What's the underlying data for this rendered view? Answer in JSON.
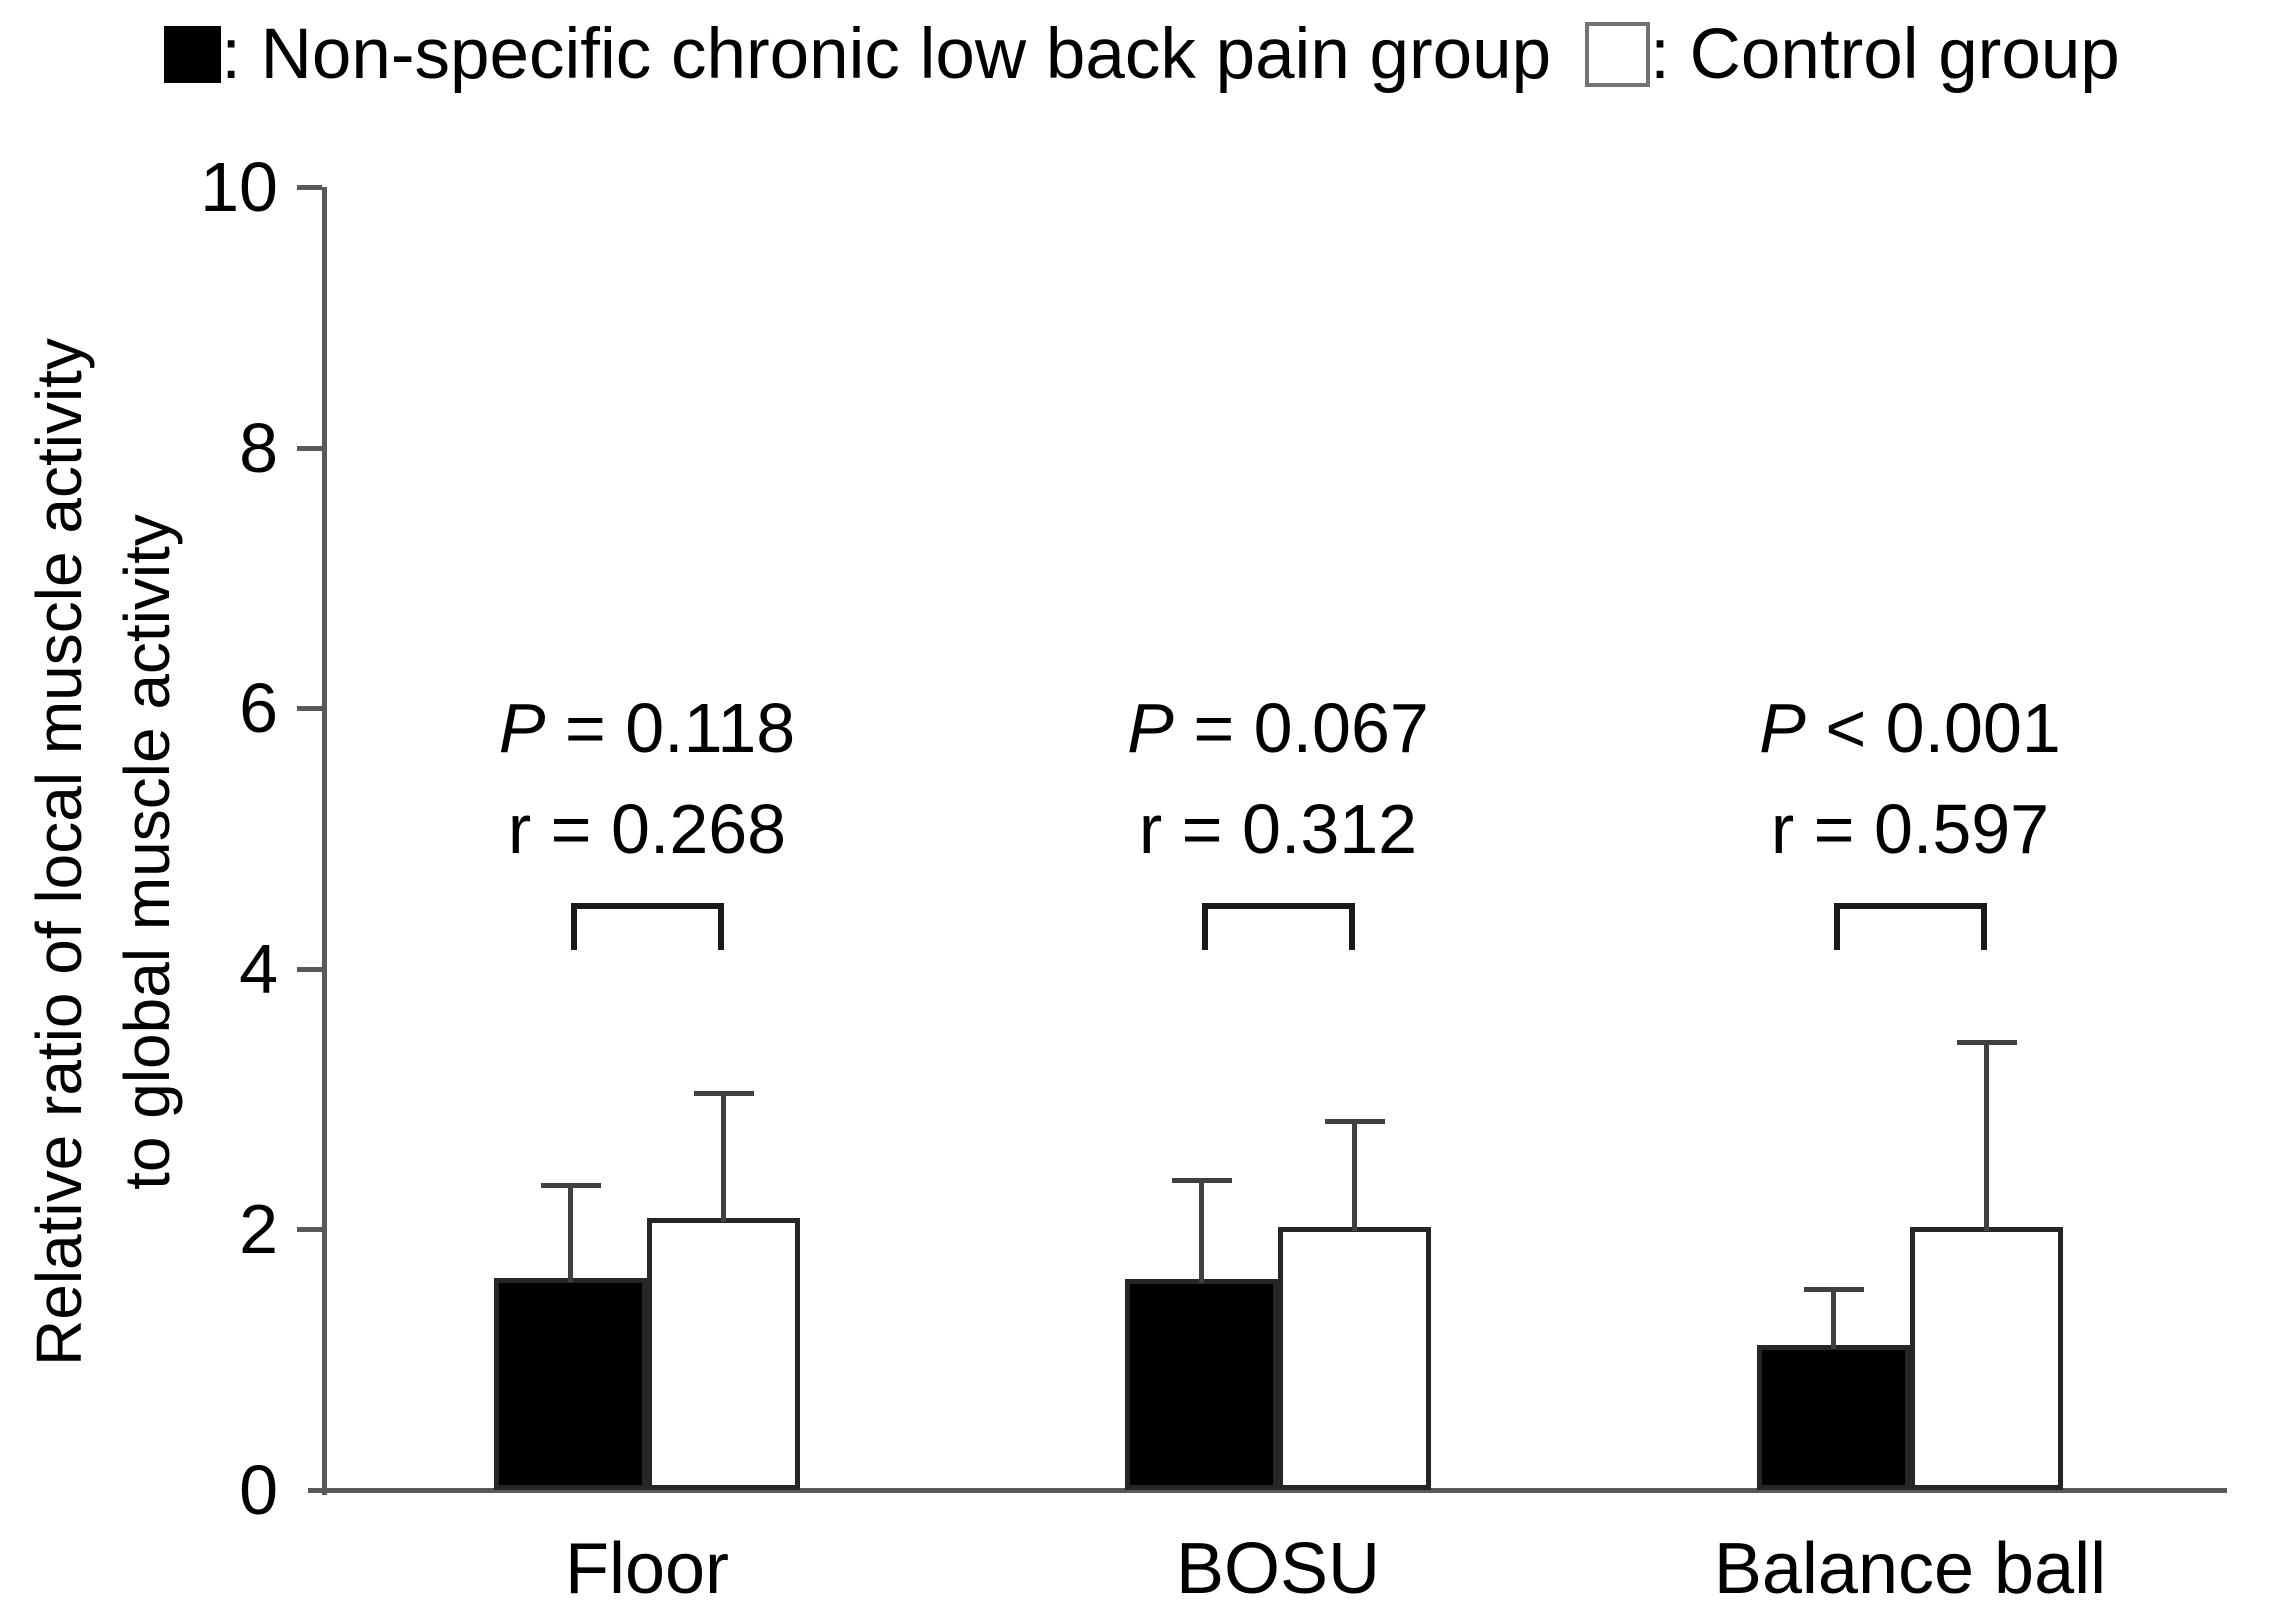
{
  "legend": {
    "nsclbp_label": ": Non-specific chronic low back pain group",
    "control_label": ": Control group"
  },
  "chart_data": {
    "type": "bar",
    "title": "",
    "categories": [
      "Floor",
      "BOSU",
      "Balance ball"
    ],
    "series": [
      {
        "name": "Non-specific chronic low back pain group",
        "fill": "#000000",
        "values": [
          1.63,
          1.62,
          1.11
        ],
        "errors_up": [
          0.71,
          0.76,
          0.43
        ]
      },
      {
        "name": "Control group",
        "fill": "#ffffff",
        "values": [
          2.09,
          2.02,
          2.02
        ],
        "errors_up": [
          0.96,
          0.81,
          1.42
        ]
      }
    ],
    "annotations": [
      {
        "category": "Floor",
        "p": "P = 0.118",
        "r": "r = 0.268"
      },
      {
        "category": "BOSU",
        "p": "P = 0.067",
        "r": "r = 0.312"
      },
      {
        "category": "Balance ball",
        "p": "P < 0.001",
        "r": "r = 0.597"
      }
    ],
    "ylabel_line1": "Relative ratio of local muscle activity",
    "ylabel_line2": "to global muscle activity",
    "xlabel": "",
    "ylim": [
      0,
      10
    ],
    "yticks": [
      0,
      2,
      4,
      6,
      8,
      10
    ],
    "grid": false,
    "legend_position": "top",
    "colors": {
      "axis": "#595959",
      "bar_outline": "#262626",
      "error_bar": "#404040",
      "bracket": "#1a1a1a",
      "text": "#000000"
    }
  }
}
